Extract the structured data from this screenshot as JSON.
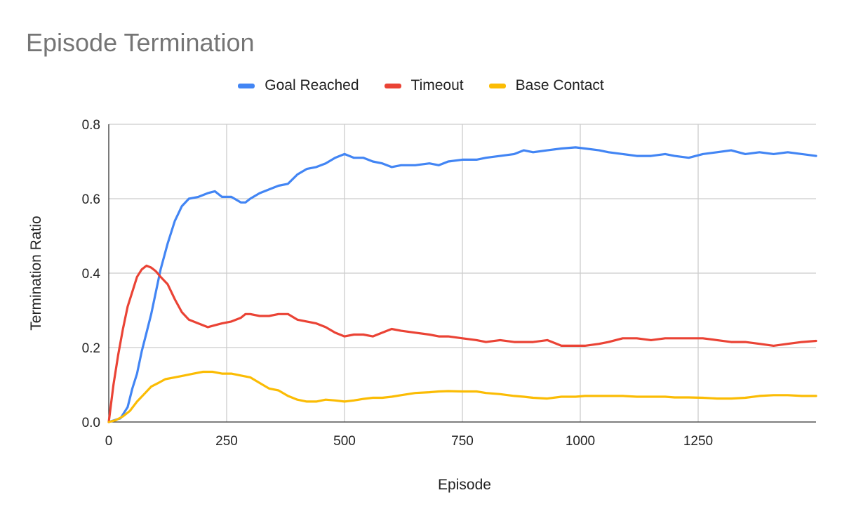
{
  "chart_data": {
    "type": "line",
    "title": "Episode Termination",
    "xlabel": "Episode",
    "ylabel": "Termination Ratio",
    "xlim": [
      0,
      1500
    ],
    "ylim": [
      0,
      0.8
    ],
    "x_ticks": [
      0,
      250,
      500,
      750,
      1000,
      1250
    ],
    "y_ticks": [
      0.0,
      0.2,
      0.4,
      0.6,
      0.8
    ],
    "y_tick_labels": [
      "0.0",
      "0.2",
      "0.4",
      "0.6",
      "0.8"
    ],
    "grid": true,
    "legend_position": "top-center",
    "series": [
      {
        "name": "Goal Reached",
        "color": "#4285F4",
        "x": [
          0,
          25,
          40,
          50,
          60,
          70,
          80,
          90,
          100,
          110,
          125,
          140,
          155,
          170,
          190,
          210,
          225,
          240,
          260,
          280,
          290,
          300,
          320,
          340,
          360,
          380,
          400,
          420,
          440,
          460,
          480,
          500,
          520,
          540,
          560,
          580,
          600,
          620,
          650,
          680,
          700,
          720,
          750,
          780,
          800,
          830,
          860,
          880,
          900,
          930,
          960,
          990,
          1010,
          1040,
          1060,
          1090,
          1120,
          1150,
          1180,
          1200,
          1230,
          1260,
          1290,
          1320,
          1350,
          1380,
          1410,
          1440,
          1470,
          1500
        ],
        "y": [
          0.0,
          0.01,
          0.04,
          0.09,
          0.13,
          0.19,
          0.24,
          0.29,
          0.35,
          0.41,
          0.48,
          0.54,
          0.58,
          0.6,
          0.605,
          0.615,
          0.62,
          0.605,
          0.605,
          0.59,
          0.59,
          0.6,
          0.615,
          0.625,
          0.635,
          0.64,
          0.665,
          0.68,
          0.685,
          0.695,
          0.71,
          0.72,
          0.71,
          0.71,
          0.7,
          0.695,
          0.685,
          0.69,
          0.69,
          0.695,
          0.69,
          0.7,
          0.705,
          0.705,
          0.71,
          0.715,
          0.72,
          0.73,
          0.725,
          0.73,
          0.735,
          0.738,
          0.735,
          0.73,
          0.725,
          0.72,
          0.715,
          0.715,
          0.72,
          0.715,
          0.71,
          0.72,
          0.725,
          0.73,
          0.72,
          0.725,
          0.72,
          0.725,
          0.72,
          0.715
        ]
      },
      {
        "name": "Timeout",
        "color": "#EA4335",
        "x": [
          0,
          10,
          20,
          30,
          40,
          50,
          60,
          70,
          80,
          90,
          100,
          110,
          125,
          140,
          155,
          170,
          190,
          210,
          225,
          240,
          260,
          280,
          290,
          300,
          320,
          340,
          360,
          380,
          400,
          420,
          440,
          460,
          480,
          500,
          520,
          540,
          560,
          580,
          600,
          620,
          650,
          680,
          700,
          720,
          750,
          780,
          800,
          830,
          860,
          880,
          900,
          930,
          960,
          990,
          1010,
          1040,
          1060,
          1090,
          1120,
          1150,
          1180,
          1200,
          1230,
          1260,
          1290,
          1320,
          1350,
          1380,
          1410,
          1440,
          1470,
          1500
        ],
        "y": [
          0.0,
          0.1,
          0.18,
          0.25,
          0.31,
          0.35,
          0.39,
          0.41,
          0.42,
          0.415,
          0.405,
          0.39,
          0.37,
          0.33,
          0.295,
          0.275,
          0.265,
          0.255,
          0.26,
          0.265,
          0.27,
          0.28,
          0.29,
          0.29,
          0.285,
          0.285,
          0.29,
          0.29,
          0.275,
          0.27,
          0.265,
          0.255,
          0.24,
          0.23,
          0.235,
          0.235,
          0.23,
          0.24,
          0.25,
          0.245,
          0.24,
          0.235,
          0.23,
          0.23,
          0.225,
          0.22,
          0.215,
          0.22,
          0.215,
          0.215,
          0.215,
          0.22,
          0.205,
          0.205,
          0.205,
          0.21,
          0.215,
          0.225,
          0.225,
          0.22,
          0.225,
          0.225,
          0.225,
          0.225,
          0.22,
          0.215,
          0.215,
          0.21,
          0.205,
          0.21,
          0.215,
          0.218
        ]
      },
      {
        "name": "Base Contact",
        "color": "#FBBC04",
        "x": [
          0,
          15,
          30,
          45,
          60,
          75,
          90,
          105,
          120,
          140,
          160,
          180,
          200,
          220,
          240,
          260,
          280,
          300,
          320,
          340,
          360,
          380,
          400,
          420,
          440,
          460,
          480,
          500,
          520,
          540,
          560,
          580,
          600,
          620,
          650,
          680,
          700,
          720,
          750,
          780,
          800,
          830,
          860,
          880,
          900,
          930,
          960,
          990,
          1010,
          1040,
          1060,
          1090,
          1120,
          1150,
          1180,
          1200,
          1230,
          1260,
          1290,
          1320,
          1350,
          1380,
          1410,
          1440,
          1470,
          1500
        ],
        "y": [
          0.0,
          0.005,
          0.015,
          0.03,
          0.055,
          0.075,
          0.095,
          0.105,
          0.115,
          0.12,
          0.125,
          0.13,
          0.135,
          0.135,
          0.13,
          0.13,
          0.125,
          0.12,
          0.105,
          0.09,
          0.085,
          0.07,
          0.06,
          0.055,
          0.055,
          0.06,
          0.058,
          0.055,
          0.058,
          0.062,
          0.065,
          0.065,
          0.068,
          0.072,
          0.078,
          0.08,
          0.082,
          0.083,
          0.082,
          0.082,
          0.078,
          0.075,
          0.07,
          0.068,
          0.065,
          0.063,
          0.068,
          0.068,
          0.07,
          0.07,
          0.07,
          0.07,
          0.068,
          0.068,
          0.068,
          0.066,
          0.066,
          0.065,
          0.063,
          0.063,
          0.065,
          0.07,
          0.072,
          0.072,
          0.07,
          0.07
        ]
      }
    ]
  }
}
